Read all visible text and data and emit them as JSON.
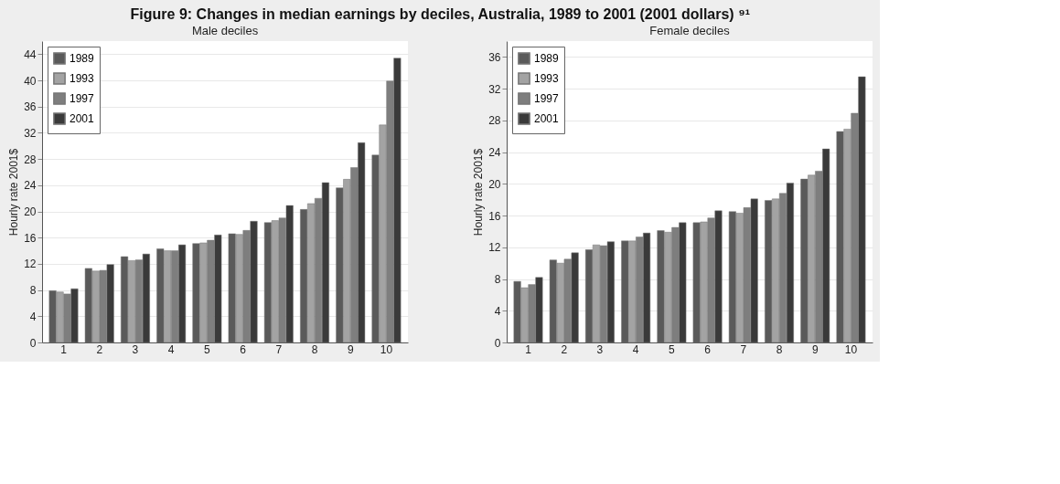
{
  "chart_data": [
    {
      "type": "bar",
      "title": "Male deciles",
      "annotations": [
        "Figure 9: Changes in median earnings by deciles, Australia, 1989 to 2001 (2001 dollars) ⁹¹"
      ],
      "ylabel": "Hourly rate 2001$",
      "categories": [
        "1",
        "2",
        "3",
        "4",
        "5",
        "6",
        "7",
        "8",
        "9",
        "10"
      ],
      "series": [
        {
          "name": "1989",
          "color": "#5a5a5a",
          "values": [
            7.9,
            11.3,
            13.1,
            14.3,
            15.1,
            16.6,
            18.3,
            20.3,
            23.6,
            28.6
          ]
        },
        {
          "name": "1993",
          "color": "#a3a3a3",
          "values": [
            7.7,
            10.9,
            12.5,
            14.0,
            15.2,
            16.5,
            18.6,
            21.2,
            24.9,
            33.2
          ]
        },
        {
          "name": "1997",
          "color": "#7e7e7e",
          "values": [
            7.4,
            11.0,
            12.6,
            14.0,
            15.6,
            17.1,
            19.0,
            22.0,
            26.7,
            39.9
          ]
        },
        {
          "name": "2001",
          "color": "#3a3a3a",
          "values": [
            8.2,
            11.9,
            13.5,
            14.9,
            16.4,
            18.5,
            20.9,
            24.4,
            30.5,
            43.4
          ]
        }
      ],
      "ylim": [
        0,
        46
      ],
      "yticks": [
        0,
        4,
        8,
        12,
        16,
        20,
        24,
        28,
        32,
        36,
        40,
        44
      ],
      "grid": "y",
      "legend": "top left"
    },
    {
      "type": "bar",
      "title": "Female deciles",
      "ylabel": "Hourly rate 2001$",
      "categories": [
        "1",
        "2",
        "3",
        "4",
        "5",
        "6",
        "7",
        "8",
        "9",
        "10"
      ],
      "series": [
        {
          "name": "1989",
          "color": "#5a5a5a",
          "values": [
            7.7,
            10.4,
            11.7,
            12.8,
            14.1,
            15.1,
            16.5,
            17.9,
            20.6,
            26.6
          ]
        },
        {
          "name": "1993",
          "color": "#a3a3a3",
          "values": [
            6.9,
            10.0,
            12.3,
            12.8,
            13.9,
            15.2,
            16.3,
            18.1,
            21.1,
            26.9
          ]
        },
        {
          "name": "1997",
          "color": "#7e7e7e",
          "values": [
            7.3,
            10.5,
            12.2,
            13.3,
            14.5,
            15.7,
            17.0,
            18.8,
            21.6,
            28.9
          ]
        },
        {
          "name": "2001",
          "color": "#3a3a3a",
          "values": [
            8.2,
            11.3,
            12.7,
            13.8,
            15.1,
            16.6,
            18.1,
            20.1,
            24.4,
            33.5
          ]
        }
      ],
      "ylim": [
        0,
        38
      ],
      "yticks": [
        0,
        4,
        8,
        12,
        16,
        20,
        24,
        28,
        32,
        36
      ],
      "grid": "y",
      "legend": "top left"
    }
  ]
}
